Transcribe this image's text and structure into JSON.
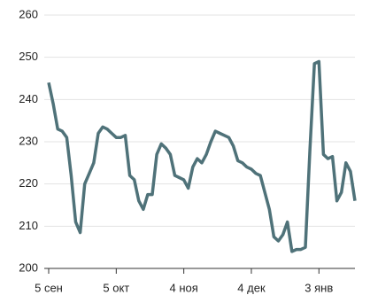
{
  "chart_data": {
    "type": "line",
    "categories": [
      "5 сен",
      null,
      null,
      null,
      null,
      null,
      null,
      null,
      null,
      null,
      null,
      null,
      null,
      null,
      null,
      "5 окт",
      null,
      null,
      null,
      null,
      null,
      null,
      null,
      null,
      null,
      null,
      null,
      null,
      null,
      null,
      "4 ноя",
      null,
      null,
      null,
      null,
      null,
      null,
      null,
      null,
      null,
      null,
      null,
      null,
      null,
      null,
      "4 дек",
      null,
      null,
      null,
      null,
      null,
      null,
      null,
      null,
      null,
      null,
      null,
      null,
      null,
      null,
      "3 янв",
      null,
      null,
      null,
      null,
      null,
      null,
      null,
      null
    ],
    "series": [
      {
        "name": null,
        "color": "#4f7279",
        "values": [
          244,
          239,
          233,
          232.5,
          231,
          222,
          211,
          208.5,
          220,
          222.5,
          225,
          232,
          233.5,
          233,
          232,
          231,
          231,
          231.5,
          222,
          221,
          216,
          214,
          217.5,
          217.5,
          227,
          229.5,
          228.5,
          227,
          222,
          221.5,
          221,
          219,
          224,
          226,
          225,
          227,
          230,
          232.5,
          232,
          231.5,
          231,
          229,
          225.5,
          225,
          224,
          223.5,
          222.5,
          222,
          218,
          214,
          207.5,
          206.5,
          208,
          211,
          204,
          204.5,
          204.5,
          205,
          228,
          248.5,
          249,
          227,
          226,
          226.5,
          216,
          218,
          225,
          223,
          216
        ]
      }
    ],
    "ylim": [
      200,
      260
    ],
    "yticks": [
      200,
      210,
      220,
      230,
      240,
      250,
      260
    ],
    "grid": true
  }
}
